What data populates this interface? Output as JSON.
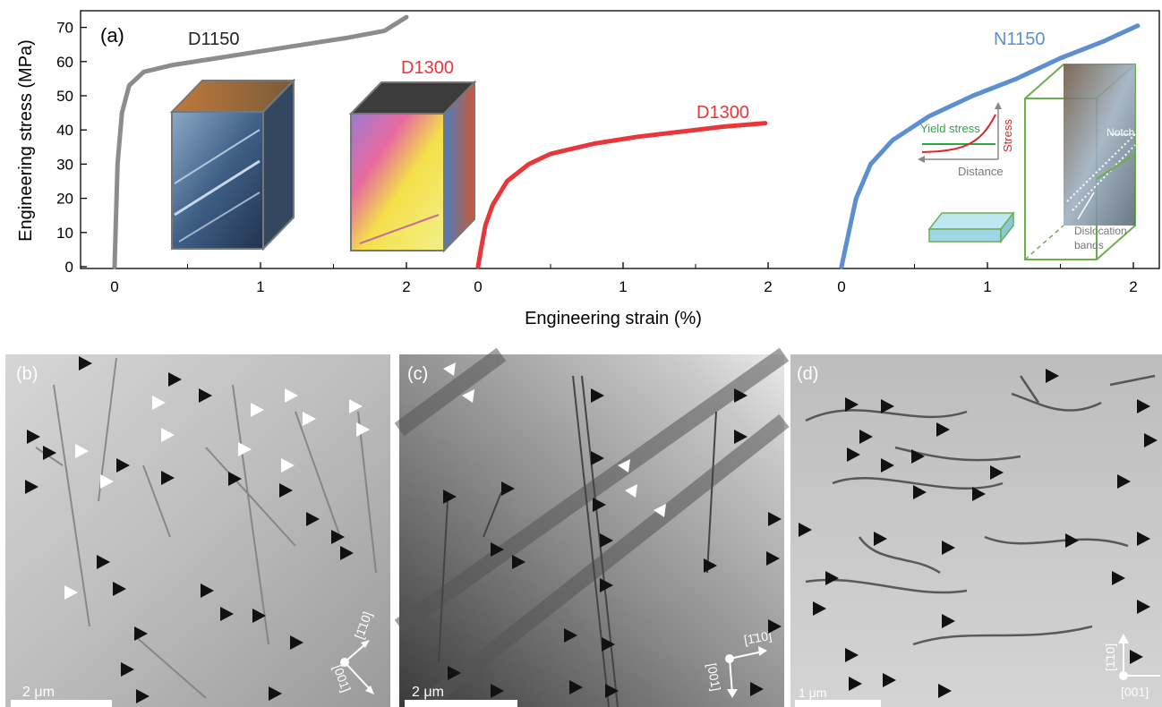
{
  "panel_a": {
    "label": "(a)",
    "ylabel": "Engineering stress (MPa)",
    "xlabel": "Engineering strain (%)",
    "yticks": [
      "0",
      "10",
      "20",
      "30",
      "40",
      "50",
      "60",
      "70"
    ],
    "xticks": [
      "0",
      "1",
      "2"
    ],
    "inset": {
      "yield_label": "Yield stress",
      "stress_label": "Stress",
      "distance_label": "Distance",
      "notch_label": "Notch",
      "dislocation_label_1": "Dislocation",
      "dislocation_label_2": "bands"
    },
    "colors": {
      "D1150": "#8c8c8c",
      "D1300": "#e8373a",
      "N1150": "#5b8fd0",
      "green": "#6ab04c"
    }
  },
  "chart_data": {
    "type": "line",
    "xlabel": "Engineering strain (%)",
    "ylabel": "Engineering stress (MPa)",
    "ylim": [
      0,
      75
    ],
    "xlim_per_subplot": [
      0,
      2.3
    ],
    "grid": false,
    "series": [
      {
        "name": "D1150",
        "x": [
          0,
          0.02,
          0.05,
          0.1,
          0.2,
          0.4,
          0.7,
          1.0,
          1.3,
          1.6,
          1.85,
          2.0
        ],
        "values": [
          0,
          30,
          45,
          53,
          57,
          59,
          61,
          63,
          65,
          67,
          69,
          73
        ]
      },
      {
        "name": "D1300",
        "x": [
          0,
          0.02,
          0.05,
          0.1,
          0.2,
          0.35,
          0.5,
          0.8,
          1.1,
          1.4,
          1.7,
          1.98
        ],
        "values": [
          0,
          5,
          12,
          18,
          25,
          30,
          33,
          36,
          38,
          39.5,
          41,
          42
        ]
      },
      {
        "name": "N1150",
        "x": [
          0,
          0.05,
          0.1,
          0.2,
          0.35,
          0.6,
          0.9,
          1.2,
          1.5,
          1.8,
          2.03
        ],
        "values": [
          0,
          10,
          20,
          30,
          37,
          44,
          50,
          55,
          61,
          66,
          70.5
        ]
      }
    ]
  },
  "panels": {
    "b": {
      "label": "(b)",
      "scalebar": "2 μm",
      "dir1": "[1̄10]",
      "dir2": "[001]"
    },
    "c": {
      "label": "(c)",
      "scalebar": "2 μm",
      "dir1": "[1̄10]",
      "dir2": "[001]"
    },
    "d": {
      "label": "(d)",
      "scalebar": "1 μm",
      "dir1": "[1̄10]",
      "dir2": "[001]"
    }
  }
}
